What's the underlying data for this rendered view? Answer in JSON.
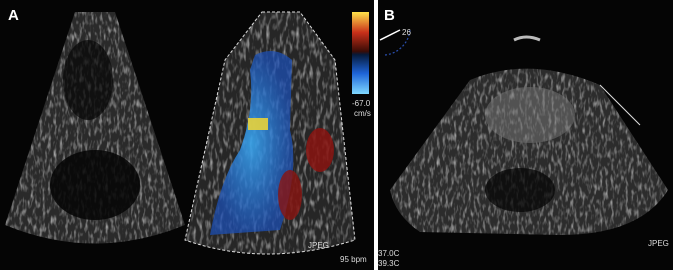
{
  "panels": [
    {
      "label": "A",
      "color_scale": {
        "min_label": "-67.0",
        "unit": "cm/s"
      },
      "heart_rate": "95 bpm",
      "watermark": "JPEG"
    },
    {
      "label": "B",
      "angle": "26",
      "watermark": "JPEG",
      "temperatures": [
        "37.0C",
        "39.3C"
      ]
    }
  ]
}
